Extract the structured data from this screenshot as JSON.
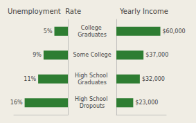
{
  "chart_data": [
    {
      "type": "bar",
      "orientation": "horizontal",
      "title": "Unemployment  Rate",
      "categories": [
        "College Graduates",
        "Some College",
        "High School Graduates",
        "High School Dropouts"
      ],
      "values": [
        5,
        9,
        11,
        16
      ],
      "value_labels": [
        "5%",
        "9%",
        "11%",
        "16%"
      ],
      "data_labels": true,
      "color": "#2e7d32",
      "xlim": [
        20,
        0
      ],
      "grid": false,
      "tick_labels": "y"
    },
    {
      "type": "bar",
      "orientation": "horizontal",
      "title": "Yearly Income",
      "categories": [
        "College Graduates",
        "Some College",
        "High School Graduates",
        "High School Dropouts"
      ],
      "values": [
        60000,
        37000,
        32000,
        23000
      ],
      "value_labels": [
        "$60,000",
        "$37,000",
        "$32,000",
        "$23,000"
      ],
      "data_labels": true,
      "color": "#2e7d32",
      "xlim": [
        0,
        68000
      ],
      "grid": false,
      "tick_labels": false
    }
  ]
}
